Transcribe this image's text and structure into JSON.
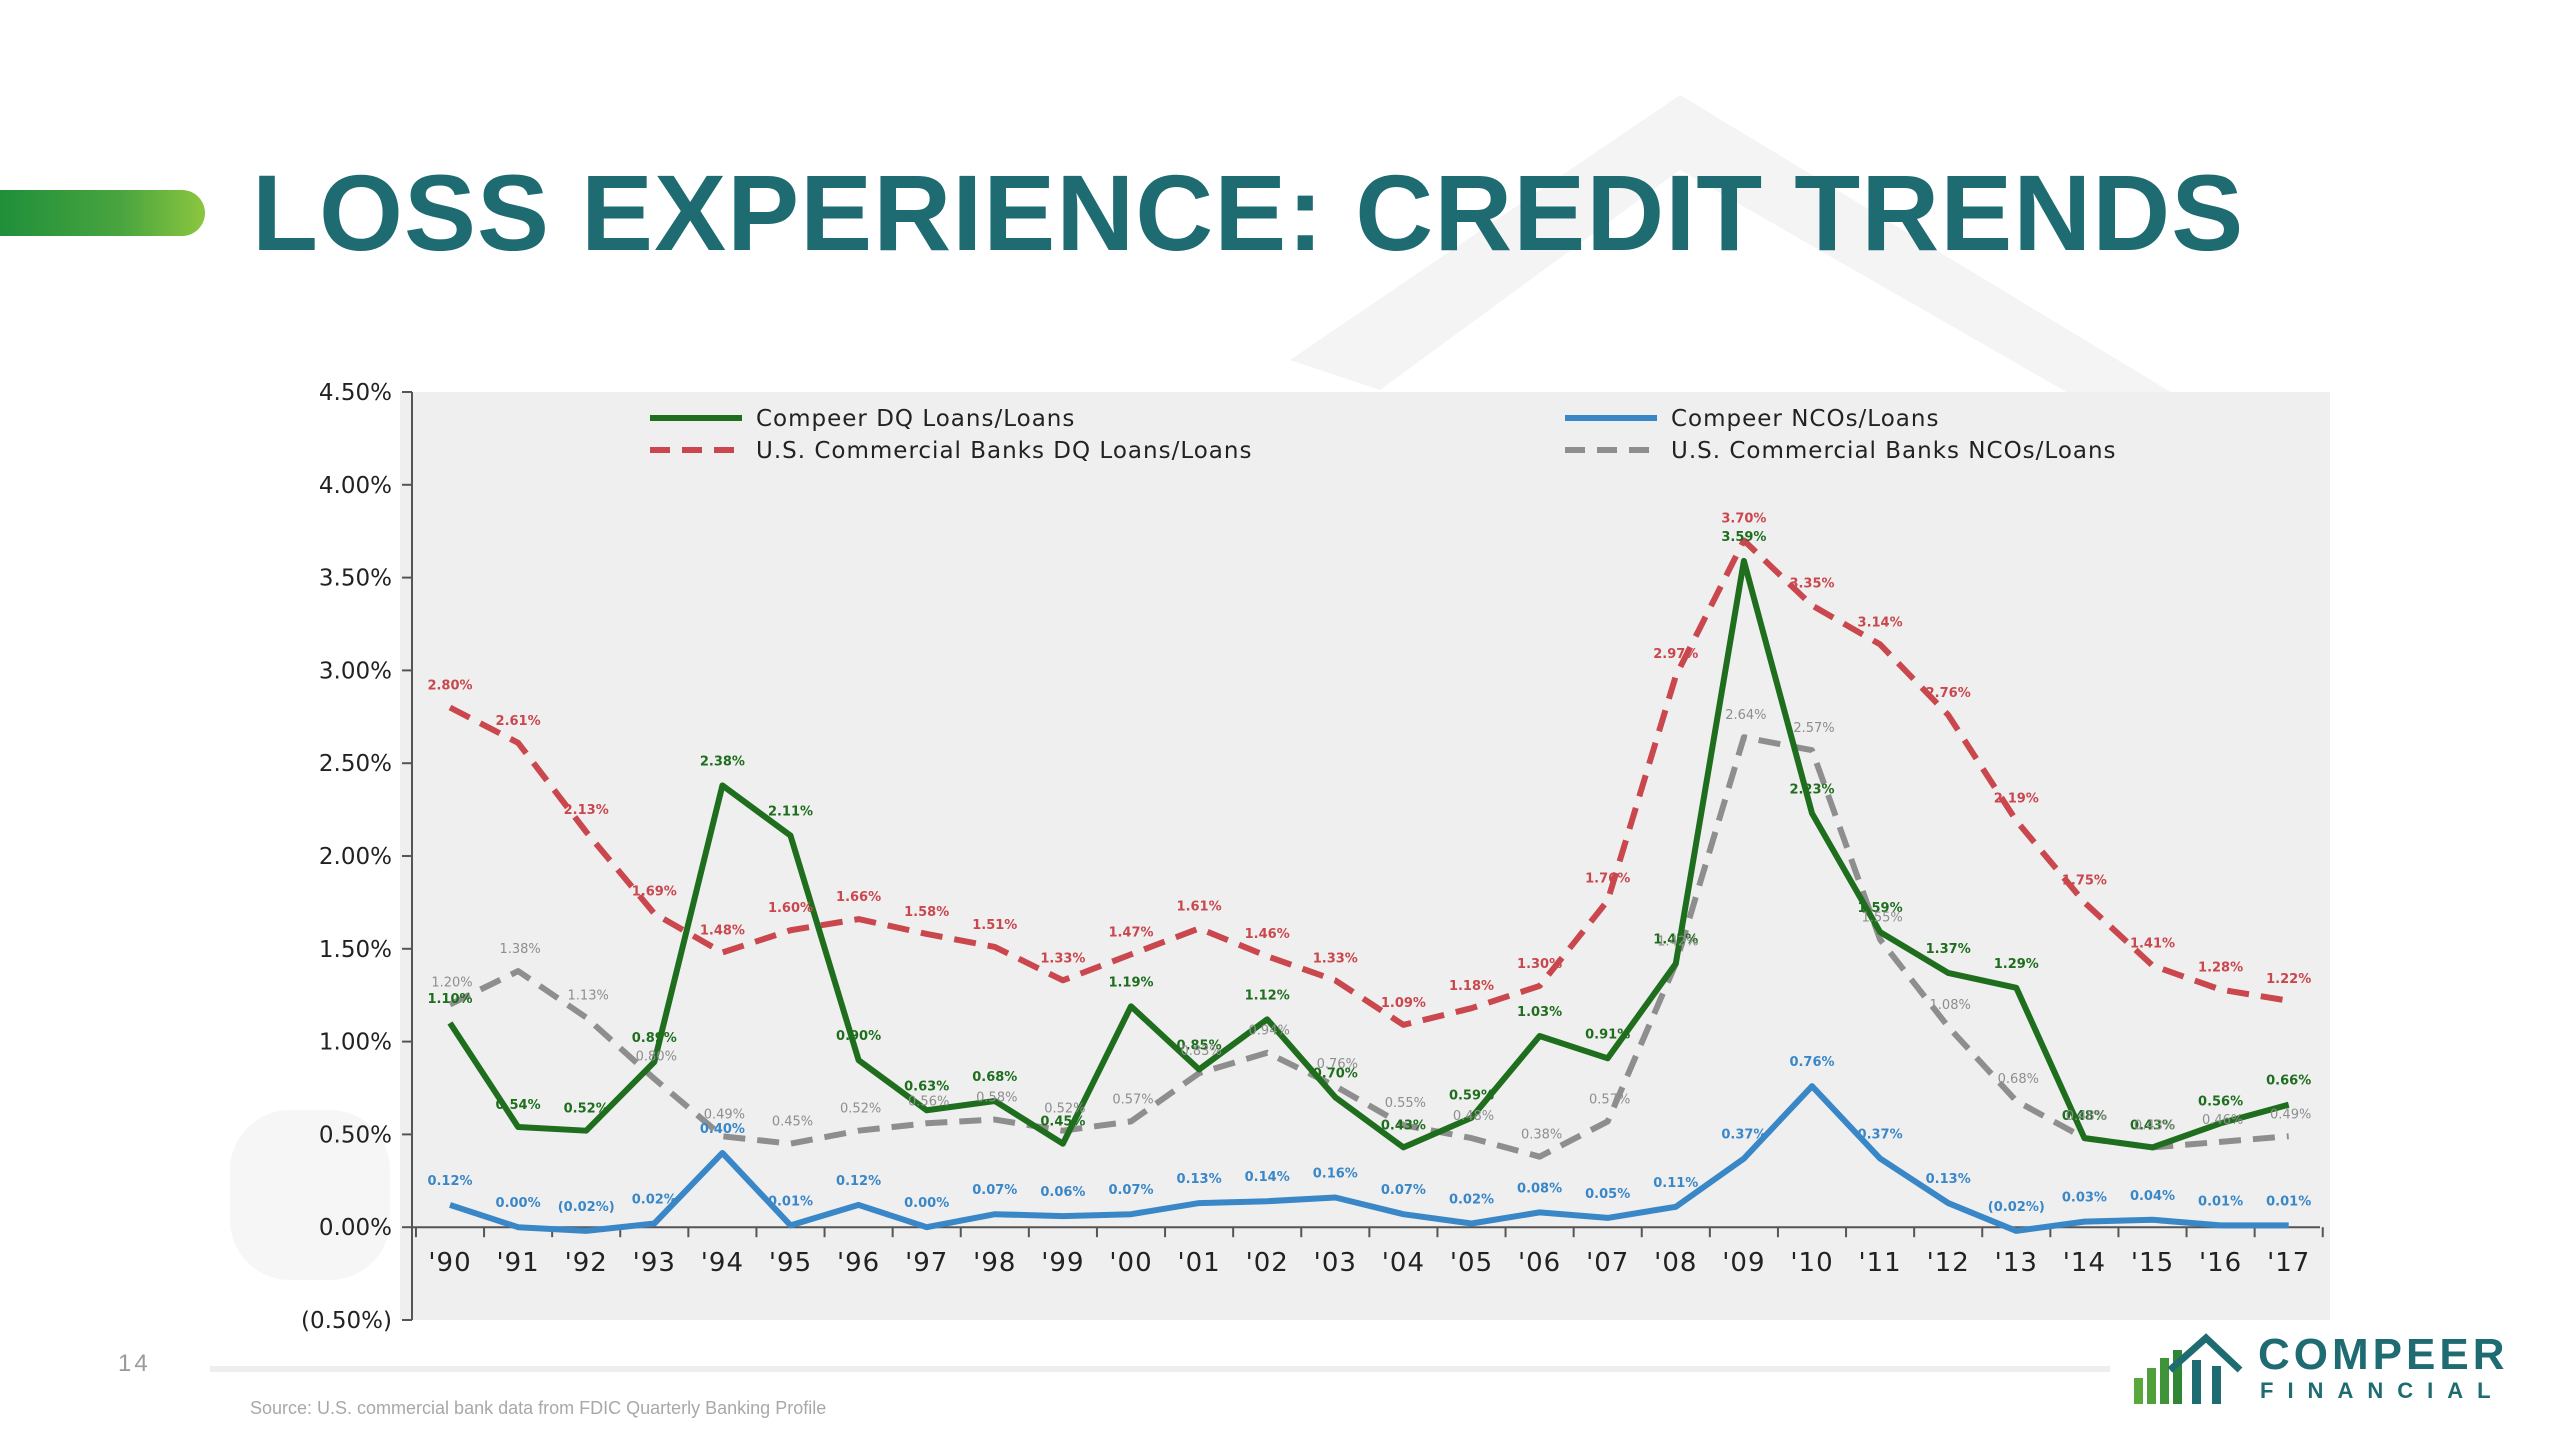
{
  "page": {
    "title": "LOSS EXPERIENCE: CREDIT TRENDS",
    "page_number": "14",
    "source_note": "Source: U.S. commercial bank data from FDIC Quarterly Banking Profile",
    "logo": {
      "name": "COMPEER",
      "sub": "FINANCIAL"
    }
  },
  "colors": {
    "title": "#1e6b72",
    "compeer_dq": "#1e6e1e",
    "compeer_nco": "#3a87c8",
    "us_dq": "#c9474d",
    "us_nco": "#8e8e8e",
    "plot_bg": "#efefef"
  },
  "chart_data": {
    "type": "line",
    "categories": [
      "'90",
      "'91",
      "'92",
      "'93",
      "'94",
      "'95",
      "'96",
      "'97",
      "'98",
      "'99",
      "'00",
      "'01",
      "'02",
      "'03",
      "'04",
      "'05",
      "'06",
      "'07",
      "'08",
      "'09",
      "'10",
      "'11",
      "'12",
      "'13",
      "'14",
      "'15",
      "'16",
      "'17"
    ],
    "y_ticks": [
      "4.50%",
      "4.00%",
      "3.50%",
      "3.00%",
      "2.50%",
      "2.00%",
      "1.50%",
      "1.00%",
      "0.50%",
      "0.00%",
      "(0.50%)"
    ],
    "ylim": [
      -0.5,
      4.5
    ],
    "legend_position": "top",
    "series": [
      {
        "name": "Compeer DQ Loans/Loans",
        "style": "solid",
        "color": "#1e6e1e",
        "values": [
          1.1,
          0.54,
          0.52,
          0.89,
          2.38,
          2.11,
          0.9,
          0.63,
          0.68,
          0.45,
          1.19,
          0.85,
          1.12,
          0.7,
          0.43,
          0.59,
          1.03,
          0.91,
          1.42,
          3.59,
          2.23,
          1.59,
          1.37,
          1.29,
          0.48,
          0.43,
          0.56,
          0.66
        ],
        "labels": [
          "1.10%",
          "0.54%",
          "0.52%",
          "0.89%",
          "2.38%",
          "2.11%",
          "0.90%",
          "0.63%",
          "0.68%",
          "0.45%",
          "1.19%",
          "0.85%",
          "1.12%",
          "0.70%",
          "0.43%",
          "0.59%",
          "1.03%",
          "0.91%",
          "1.42%",
          "3.59%",
          "2.23%",
          "1.59%",
          "1.37%",
          "1.29%",
          "0.48%",
          "0.43%",
          "0.56%",
          "0.66%"
        ]
      },
      {
        "name": "U.S. Commercial Banks DQ Loans/Loans",
        "style": "dashed",
        "color": "#c9474d",
        "values": [
          2.8,
          2.61,
          2.13,
          1.69,
          1.48,
          1.6,
          1.66,
          1.58,
          1.51,
          1.33,
          1.47,
          1.61,
          1.46,
          1.33,
          1.09,
          1.18,
          1.3,
          1.76,
          2.97,
          3.7,
          3.35,
          3.14,
          2.76,
          2.19,
          1.75,
          1.41,
          1.28,
          1.22
        ],
        "labels": [
          "2.80%",
          "2.61%",
          "2.13%",
          "1.69%",
          "1.48%",
          "1.60%",
          "1.66%",
          "1.58%",
          "1.51%",
          "1.33%",
          "1.47%",
          "1.61%",
          "1.46%",
          "1.33%",
          "1.09%",
          "1.18%",
          "1.30%",
          "1.76%",
          "2.97%",
          "3.70%",
          "3.35%",
          "3.14%",
          "2.76%",
          "2.19%",
          "1.75%",
          "1.41%",
          "1.28%",
          "1.22%"
        ]
      },
      {
        "name": "Compeer NCOs/Loans",
        "style": "solid",
        "color": "#3a87c8",
        "values": [
          0.12,
          0.0,
          -0.02,
          0.02,
          0.4,
          0.01,
          0.12,
          0.0,
          0.07,
          0.06,
          0.07,
          0.13,
          0.14,
          0.16,
          0.07,
          0.02,
          0.08,
          0.05,
          0.11,
          0.37,
          0.76,
          0.37,
          0.13,
          -0.02,
          0.03,
          0.04,
          0.01,
          0.01
        ],
        "labels": [
          "0.12%",
          "0.00%",
          "(0.02%)",
          "0.02%",
          "0.40%",
          "0.01%",
          "0.12%",
          "0.00%",
          "0.07%",
          "0.06%",
          "0.07%",
          "0.13%",
          "0.14%",
          "0.16%",
          "0.07%",
          "0.02%",
          "0.08%",
          "0.05%",
          "0.11%",
          "0.37%",
          "0.76%",
          "0.37%",
          "0.13%",
          "(0.02%)",
          "0.03%",
          "0.04%",
          "0.01%",
          "0.01%"
        ]
      },
      {
        "name": "U.S. Commercial Banks NCOs/Loans",
        "style": "dashed",
        "color": "#8e8e8e",
        "values": [
          1.2,
          1.38,
          1.13,
          0.8,
          0.49,
          0.45,
          0.52,
          0.56,
          0.58,
          0.52,
          0.57,
          0.83,
          0.94,
          0.76,
          0.55,
          0.48,
          0.38,
          0.57,
          1.42,
          2.64,
          2.57,
          1.55,
          1.08,
          0.68,
          0.48,
          0.43,
          0.46,
          0.49
        ],
        "labels": [
          "1.20%",
          "1.38%",
          "1.13%",
          "0.80%",
          "0.49%",
          "0.45%",
          "0.52%",
          "0.56%",
          "0.58%",
          "0.52%",
          "0.57%",
          "0.83%",
          "0.94%",
          "0.76%",
          "0.55%",
          "0.48%",
          "0.38%",
          "0.57%",
          "1.42%",
          "2.64%",
          "2.57%",
          "1.55%",
          "1.08%",
          "0.68%",
          "0.48%",
          "0.43%",
          "0.46%",
          "0.49%"
        ]
      }
    ]
  }
}
